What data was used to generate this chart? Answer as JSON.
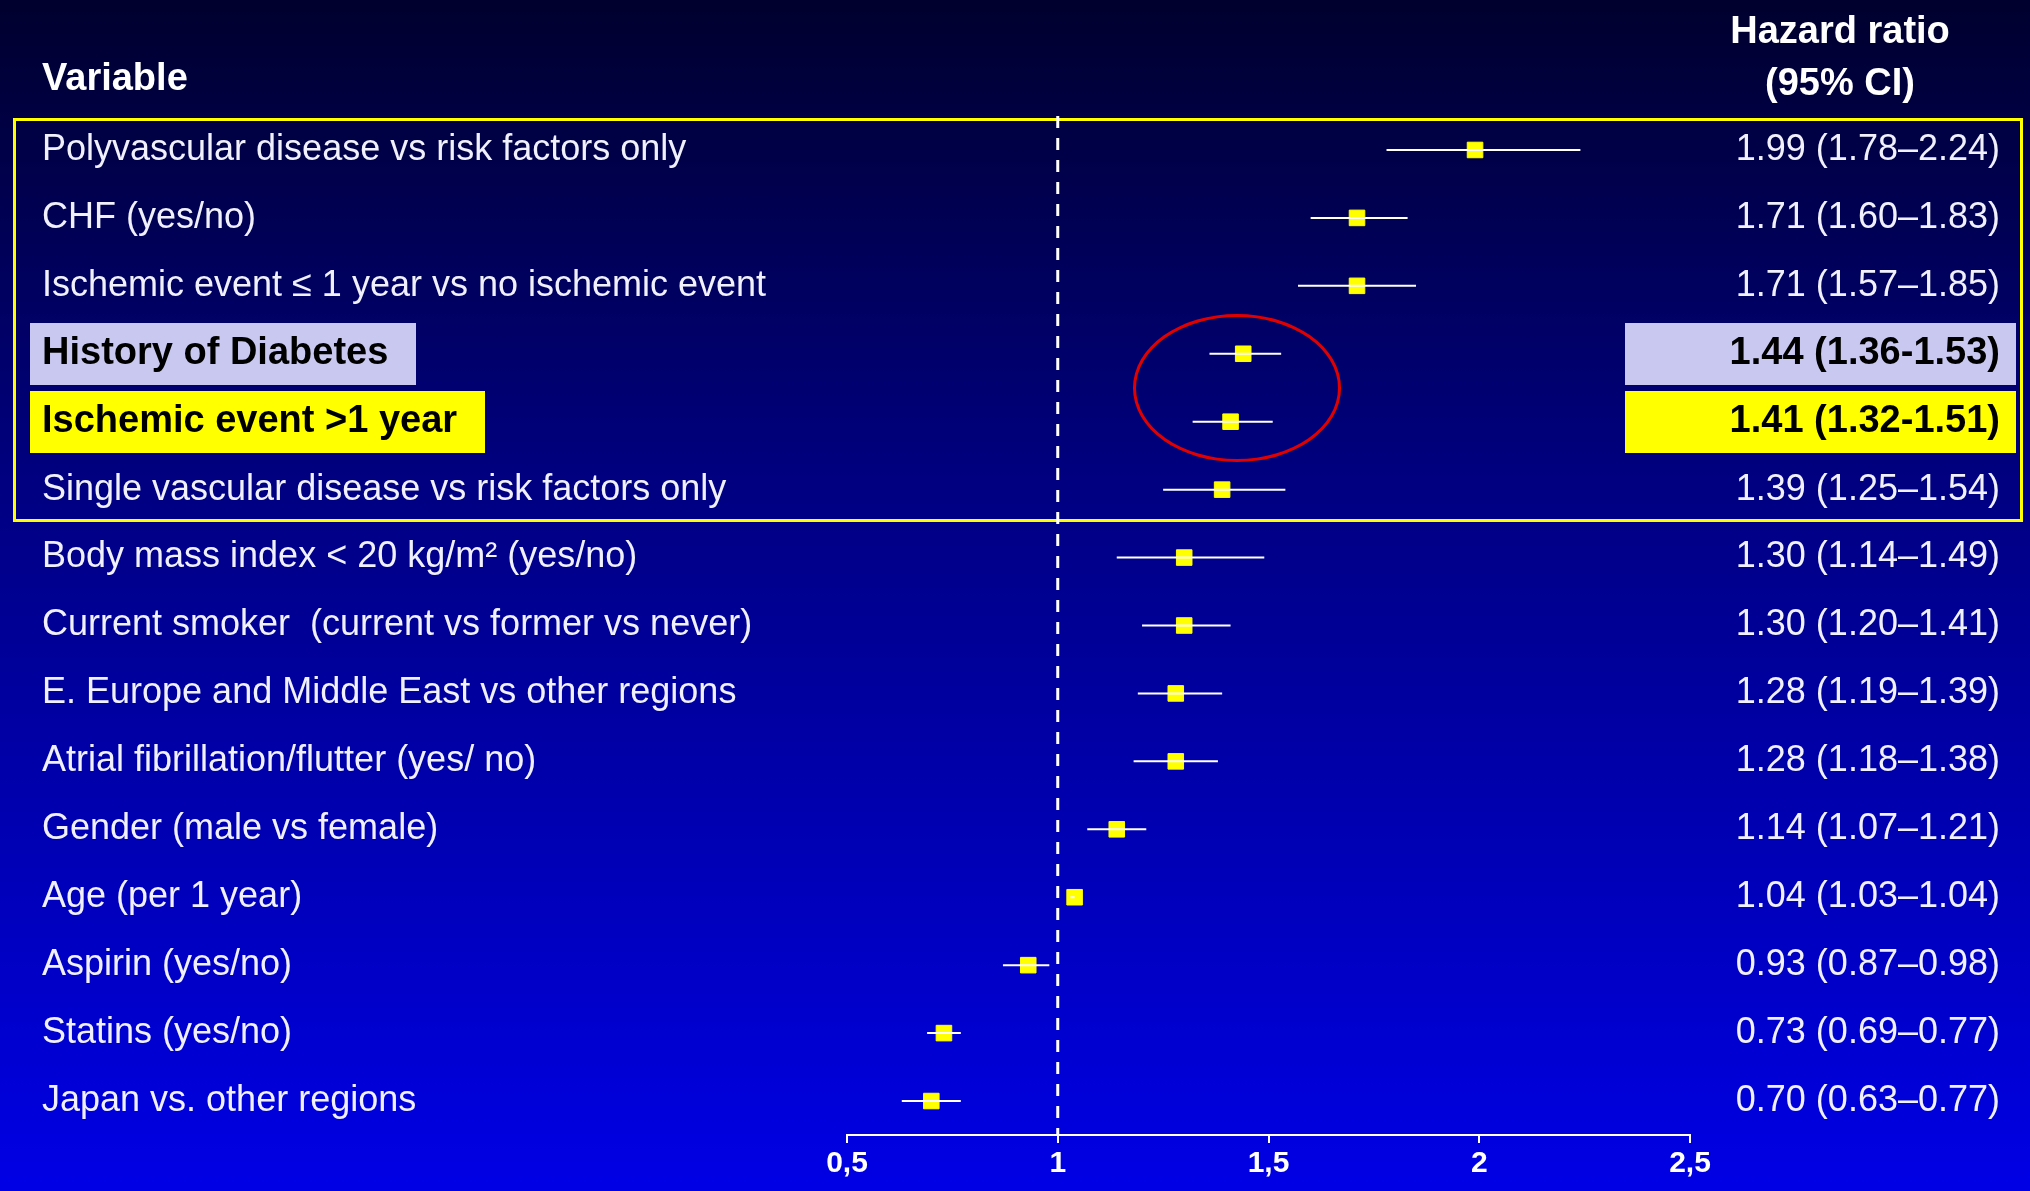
{
  "chart_data": {
    "type": "scatter",
    "orientation": "horizontal",
    "ylabel": "Variable",
    "annotations": [
      "Hazard ratio (95% CI)"
    ],
    "categories": [
      "Polyvascular disease vs risk factors only",
      "CHF (yes/no)",
      "Ischemic event ≤ 1 year vs no ischemic event",
      "History of Diabetes",
      "Ischemic event >1 year",
      "Single vascular disease vs risk factors only",
      "Body mass index < 20 kg/m² (yes/no)",
      "Current smoker  (current vs former vs never)",
      "E. Europe and Middle East vs other regions",
      "Atrial fibrillation/flutter (yes/ no)",
      "Gender (male vs female)",
      "Age (per 1 year)",
      "Aspirin (yes/no)",
      "Statins (yes/no)",
      "Japan vs. other regions"
    ],
    "values": [
      1.99,
      1.71,
      1.71,
      1.44,
      1.41,
      1.39,
      1.3,
      1.3,
      1.28,
      1.28,
      1.14,
      1.04,
      0.93,
      0.73,
      0.7
    ],
    "errors": [
      [
        1.78,
        2.24
      ],
      [
        1.6,
        1.83
      ],
      [
        1.57,
        1.85
      ],
      [
        1.36,
        1.53
      ],
      [
        1.32,
        1.51
      ],
      [
        1.25,
        1.54
      ],
      [
        1.14,
        1.49
      ],
      [
        1.2,
        1.41
      ],
      [
        1.19,
        1.39
      ],
      [
        1.18,
        1.38
      ],
      [
        1.07,
        1.21
      ],
      [
        1.03,
        1.04
      ],
      [
        0.87,
        0.98
      ],
      [
        0.69,
        0.77
      ],
      [
        0.63,
        0.77
      ]
    ],
    "value_labels": [
      "1.99 (1.78–2.24)",
      "1.71 (1.60–1.83)",
      "1.71 (1.57–1.85)",
      "1.44 (1.36-1.53)",
      "1.41 (1.32-1.51)",
      "1.39 (1.25–1.54)",
      "1.30 (1.14–1.49)",
      "1.30 (1.20–1.41)",
      "1.28 (1.19–1.39)",
      "1.28 (1.18–1.38)",
      "1.14 (1.07–1.21)",
      "1.04 (1.03–1.04)",
      "0.93 (0.87–0.98)",
      "0.73 (0.69–0.77)",
      "0.70 (0.63–0.77)"
    ],
    "color": "#ffff00",
    "marker": "square",
    "xlim": [
      0.5,
      2.5
    ],
    "xticks": [
      {
        "value": 0.5,
        "label": "0,5"
      },
      1,
      {
        "value": 1.5,
        "label": "1,5"
      },
      2,
      {
        "value": 2.5,
        "label": "2,5"
      }
    ],
    "ref_lines": [
      {
        "axis": "x",
        "value": 1,
        "color": "#ffffff",
        "line_style": "dashed"
      }
    ],
    "grid": false,
    "legend": false
  }
}
